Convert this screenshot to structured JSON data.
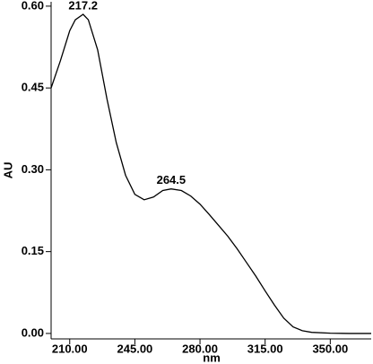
{
  "chart_data": {
    "type": "line",
    "xlabel": "nm",
    "ylabel": "AU",
    "x": [
      200,
      205,
      210,
      213,
      217.2,
      220,
      225,
      230,
      235,
      240,
      245,
      250,
      255,
      260,
      264.5,
      270,
      275,
      280,
      285,
      290,
      295,
      300,
      305,
      310,
      315,
      320,
      325,
      330,
      335,
      340,
      350,
      360,
      372
    ],
    "series": [
      {
        "color": "#000000",
        "values": [
          0.45,
          0.5,
          0.555,
          0.575,
          0.585,
          0.575,
          0.52,
          0.43,
          0.35,
          0.29,
          0.255,
          0.245,
          0.25,
          0.262,
          0.265,
          0.262,
          0.252,
          0.237,
          0.218,
          0.198,
          0.178,
          0.155,
          0.13,
          0.105,
          0.078,
          0.052,
          0.028,
          0.012,
          0.005,
          0.002,
          0.0005,
          0,
          0
        ]
      }
    ],
    "annotations": [
      {
        "label": "217.2",
        "x": 217.2,
        "y": 0.585
      },
      {
        "label": "264.5",
        "x": 264.5,
        "y": 0.265
      }
    ],
    "xlim": [
      200,
      372
    ],
    "ylim": [
      -0.01,
      0.608
    ],
    "xticks": [
      {
        "value": 210,
        "label": "210.00"
      },
      {
        "value": 245,
        "label": "245.00"
      },
      {
        "value": 280,
        "label": "280.00"
      },
      {
        "value": 315,
        "label": "315.00"
      },
      {
        "value": 350,
        "label": "350.00"
      }
    ],
    "yticks": [
      {
        "value": 0,
        "label": "0.00"
      },
      0.15,
      {
        "value": 0.3,
        "label": "0.30"
      },
      0.45,
      {
        "value": 0.6,
        "label": "0.60"
      }
    ]
  }
}
